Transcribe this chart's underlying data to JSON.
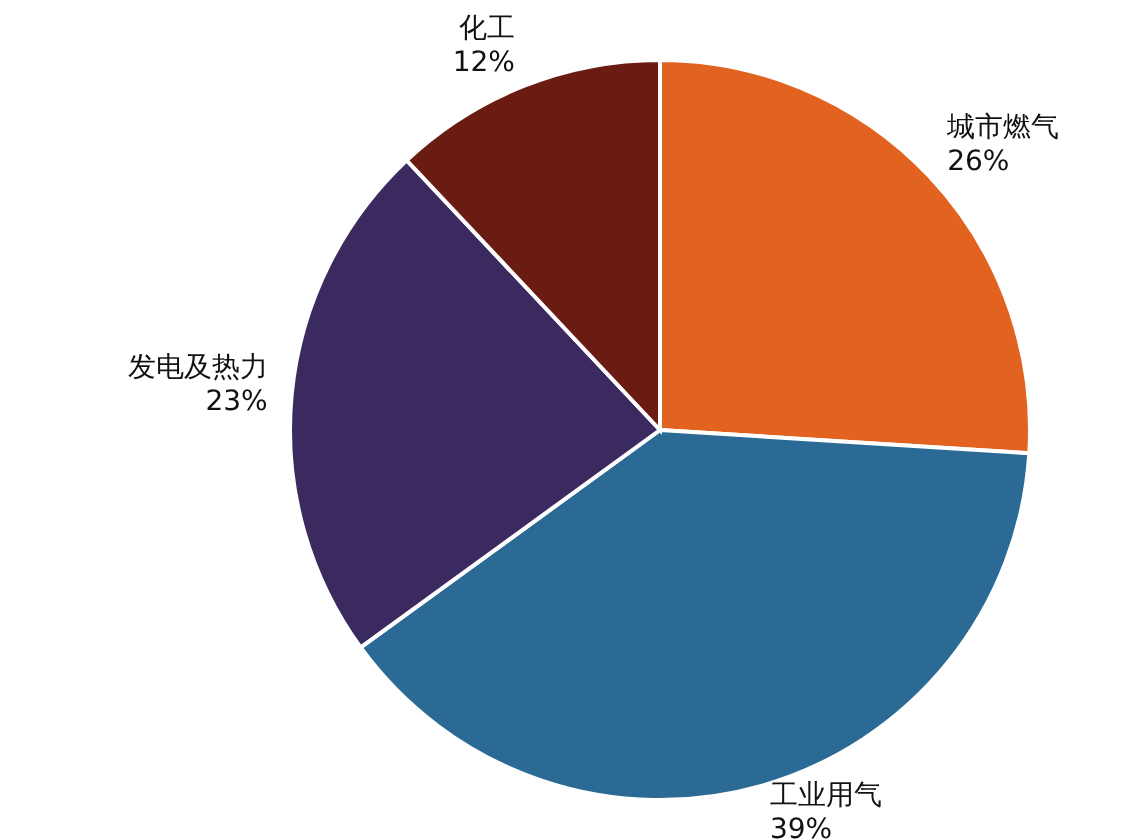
{
  "chart_data": {
    "type": "pie",
    "categories": [
      "城市燃气",
      "工业用气",
      "发电及热力",
      "化工"
    ],
    "values": [
      26,
      39,
      23,
      12
    ],
    "value_labels": [
      "26%",
      "39%",
      "23%",
      "12%"
    ],
    "colors": [
      "#e2621f",
      "#2b6a95",
      "#3a2a60",
      "#6a1b12"
    ]
  }
}
